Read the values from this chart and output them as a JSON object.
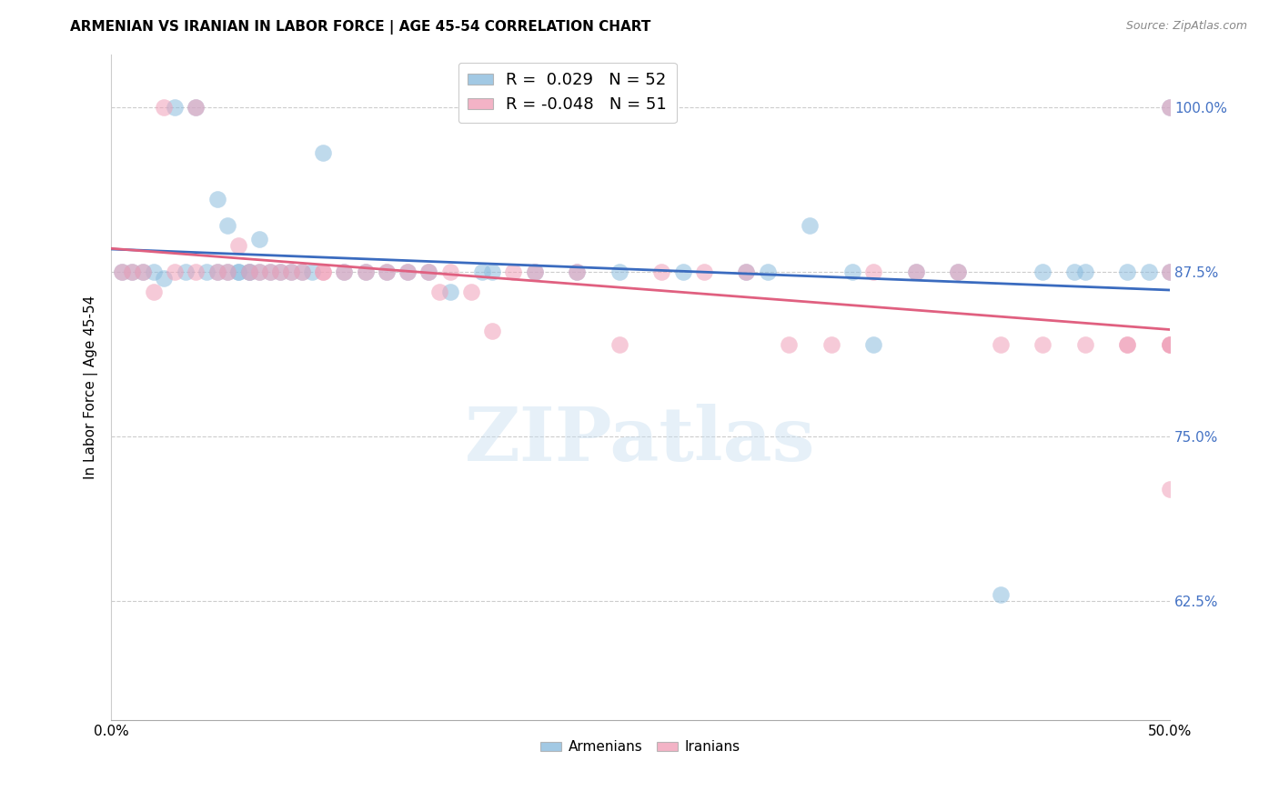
{
  "title": "ARMENIAN VS IRANIAN IN LABOR FORCE | AGE 45-54 CORRELATION CHART",
  "source": "Source: ZipAtlas.com",
  "ylabel": "In Labor Force | Age 45-54",
  "ylabel_ticks": [
    "100.0%",
    "87.5%",
    "75.0%",
    "62.5%"
  ],
  "ytick_values": [
    1.0,
    0.875,
    0.75,
    0.625
  ],
  "xlim": [
    0.0,
    0.5
  ],
  "ylim": [
    0.535,
    1.04
  ],
  "blue_R": 0.029,
  "blue_N": 52,
  "pink_R": -0.048,
  "pink_N": 51,
  "blue_color": "#8bbcde",
  "pink_color": "#f0a0b8",
  "blue_line_color": "#3a6bbf",
  "pink_line_color": "#e06080",
  "watermark": "ZIPatlas",
  "legend_label_blue": "Armenians",
  "legend_label_pink": "Iranians",
  "blue_scatter_x": [
    0.005,
    0.01,
    0.015,
    0.02,
    0.025,
    0.03,
    0.035,
    0.04,
    0.045,
    0.05,
    0.05,
    0.055,
    0.055,
    0.06,
    0.06,
    0.065,
    0.065,
    0.07,
    0.07,
    0.075,
    0.08,
    0.085,
    0.09,
    0.095,
    0.1,
    0.11,
    0.12,
    0.13,
    0.14,
    0.15,
    0.16,
    0.175,
    0.18,
    0.2,
    0.22,
    0.24,
    0.27,
    0.3,
    0.31,
    0.33,
    0.35,
    0.36,
    0.38,
    0.4,
    0.42,
    0.44,
    0.455,
    0.46,
    0.48,
    0.49,
    0.5,
    0.5
  ],
  "blue_scatter_y": [
    0.875,
    0.875,
    0.875,
    0.875,
    0.87,
    1.0,
    0.875,
    1.0,
    0.875,
    0.93,
    0.875,
    0.91,
    0.875,
    0.875,
    0.875,
    0.875,
    0.875,
    0.9,
    0.875,
    0.875,
    0.875,
    0.875,
    0.875,
    0.875,
    0.965,
    0.875,
    0.875,
    0.875,
    0.875,
    0.875,
    0.86,
    0.875,
    0.875,
    0.875,
    0.875,
    0.875,
    0.875,
    0.875,
    0.875,
    0.91,
    0.875,
    0.82,
    0.875,
    0.875,
    0.63,
    0.875,
    0.875,
    0.875,
    0.875,
    0.875,
    0.875,
    1.0
  ],
  "pink_scatter_x": [
    0.005,
    0.01,
    0.015,
    0.02,
    0.025,
    0.03,
    0.04,
    0.04,
    0.05,
    0.055,
    0.06,
    0.065,
    0.07,
    0.075,
    0.08,
    0.085,
    0.09,
    0.1,
    0.1,
    0.11,
    0.12,
    0.13,
    0.14,
    0.15,
    0.155,
    0.16,
    0.17,
    0.18,
    0.19,
    0.2,
    0.22,
    0.24,
    0.26,
    0.28,
    0.3,
    0.32,
    0.34,
    0.36,
    0.38,
    0.4,
    0.42,
    0.44,
    0.46,
    0.48,
    0.48,
    0.5,
    0.5,
    0.5,
    0.5,
    0.5,
    0.5
  ],
  "pink_scatter_y": [
    0.875,
    0.875,
    0.875,
    0.86,
    1.0,
    0.875,
    1.0,
    0.875,
    0.875,
    0.875,
    0.895,
    0.875,
    0.875,
    0.875,
    0.875,
    0.875,
    0.875,
    0.875,
    0.875,
    0.875,
    0.875,
    0.875,
    0.875,
    0.875,
    0.86,
    0.875,
    0.86,
    0.83,
    0.875,
    0.875,
    0.875,
    0.82,
    0.875,
    0.875,
    0.875,
    0.82,
    0.82,
    0.875,
    0.875,
    0.875,
    0.82,
    0.82,
    0.82,
    0.82,
    0.82,
    0.82,
    0.71,
    0.875,
    0.82,
    0.82,
    1.0
  ]
}
